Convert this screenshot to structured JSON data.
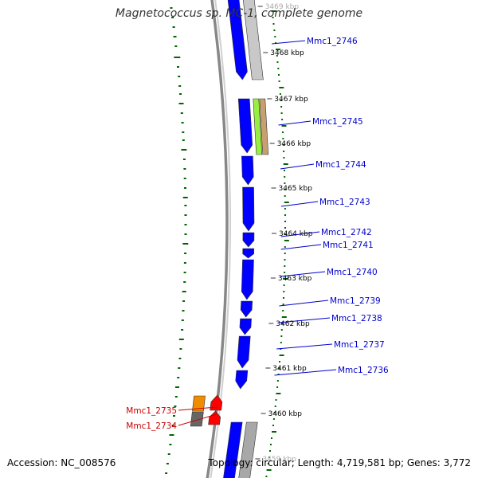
{
  "title": "Magnetococcus sp. MC-1, complete genome",
  "accession": "Accession: NC_008576",
  "summary": "Topology: circular; Length: 4,719,581 bp; Genes: 3,772",
  "colors": {
    "forward_gene": "#0000ff",
    "reverse_gene": "#ff0000",
    "gray_gene": "#a8a8a8",
    "light_gray_gene": "#c8c8c8",
    "lime_gene": "#99ee44",
    "tan_gene": "#c8a070",
    "orange_gene": "#f08c00",
    "backbone": "#888888",
    "tick_green": "#006600",
    "forward_label": "#0000cc",
    "reverse_label": "#cc0000"
  },
  "ticks": [
    {
      "label": "3469 kbp",
      "faded": true
    },
    {
      "label": "3468 kbp"
    },
    {
      "label": "3467 kbp"
    },
    {
      "label": "3466 kbp"
    },
    {
      "label": "3465 kbp"
    },
    {
      "label": "3464 kbp"
    },
    {
      "label": "3463 kbp"
    },
    {
      "label": "3462 kbp"
    },
    {
      "label": "3461 kbp"
    },
    {
      "label": "3460 kbp"
    },
    {
      "label": "3459 kbp",
      "faded": true
    }
  ],
  "labels_right": [
    {
      "id": "Mmc1_2746"
    },
    {
      "id": "Mmc1_2745"
    },
    {
      "id": "Mmc1_2744"
    },
    {
      "id": "Mmc1_2743"
    },
    {
      "id": "Mmc1_2742"
    },
    {
      "id": "Mmc1_2741"
    },
    {
      "id": "Mmc1_2740"
    },
    {
      "id": "Mmc1_2739"
    },
    {
      "id": "Mmc1_2738"
    },
    {
      "id": "Mmc1_2737"
    },
    {
      "id": "Mmc1_2736"
    }
  ],
  "labels_left": [
    {
      "id": "Mmc1_2735"
    },
    {
      "id": "Mmc1_2734"
    }
  ]
}
